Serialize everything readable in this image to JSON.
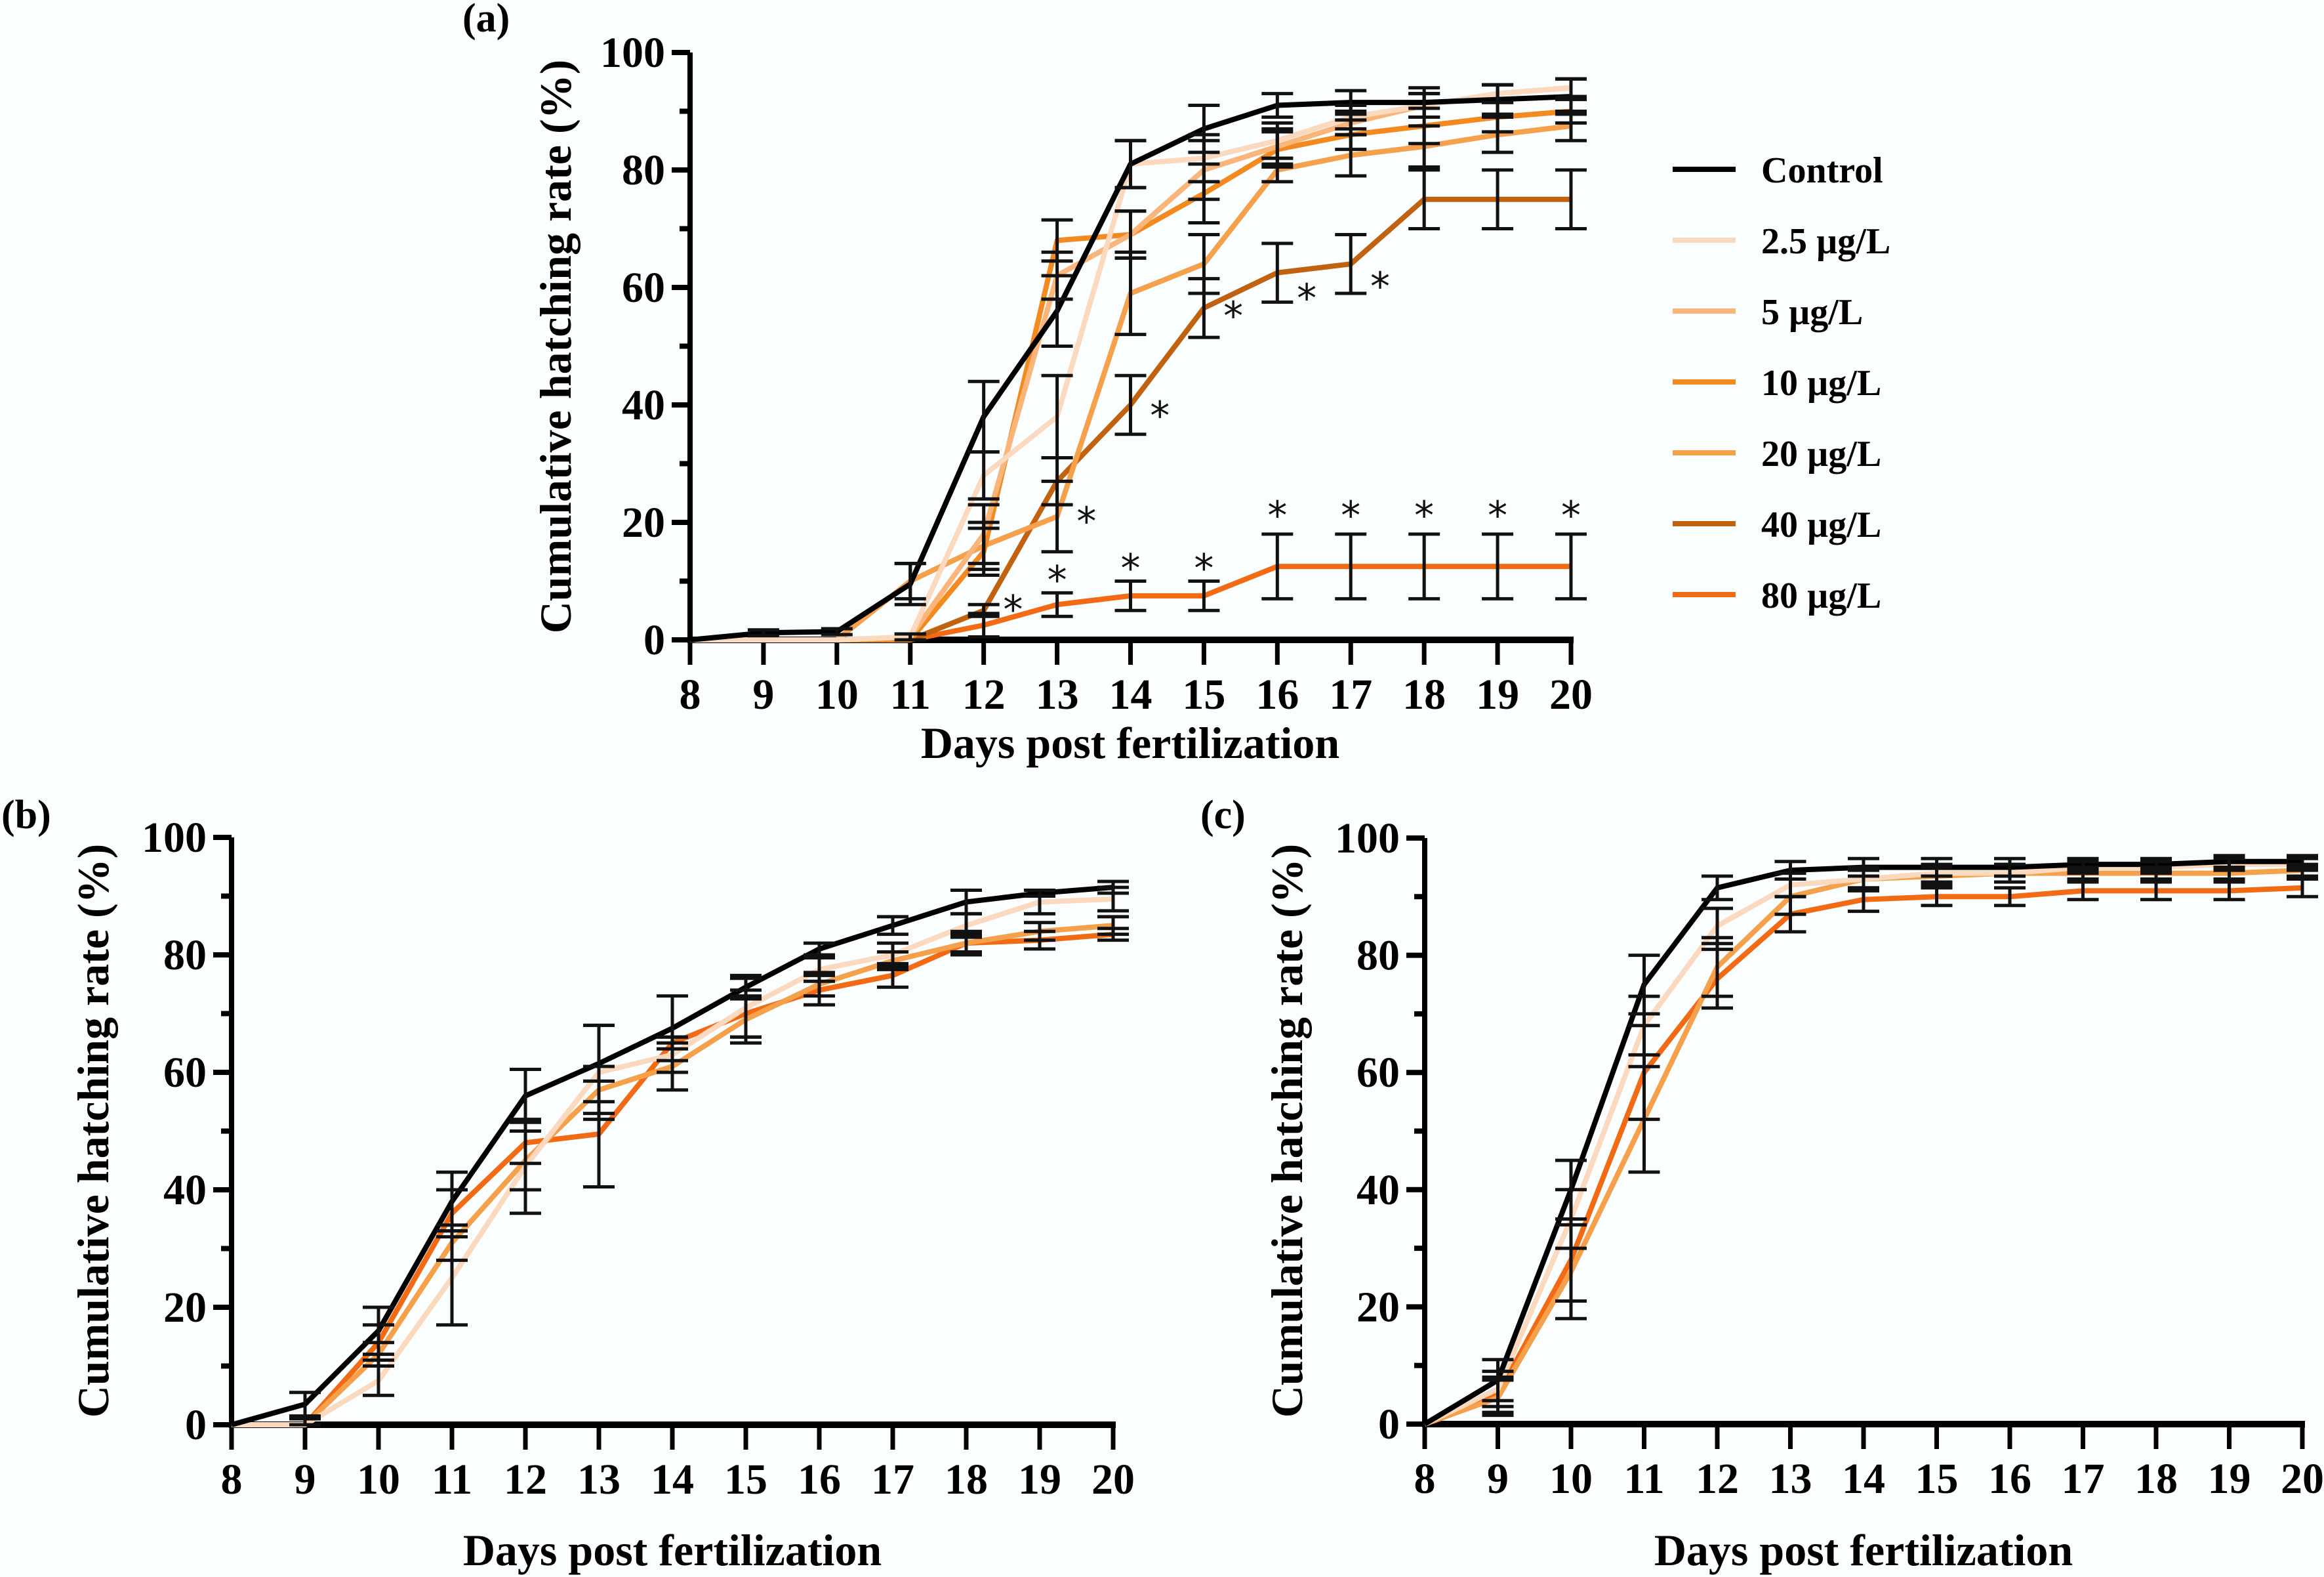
{
  "chart_data": [
    {
      "type": "line",
      "panel_label": "(a)",
      "xlabel": "Days post fertilization",
      "ylabel": "Cumulative hatching rate (%)",
      "xlim": [
        8,
        20
      ],
      "ylim": [
        0,
        100
      ],
      "x": [
        8,
        9,
        10,
        11,
        12,
        13,
        14,
        15,
        16,
        17,
        18,
        19,
        20
      ],
      "x_ticks": [
        "8",
        "9",
        "10",
        "11",
        "12",
        "13",
        "14",
        "15",
        "16",
        "17",
        "18",
        "19",
        "20"
      ],
      "y_ticks": [
        "0",
        "20",
        "40",
        "60",
        "80",
        "100"
      ],
      "grid": false,
      "legend_position": "right",
      "series": [
        {
          "name": "Control",
          "color": "#000000",
          "values": [
            0,
            1.2,
            1.4,
            9.5,
            38,
            56,
            81,
            87,
            91,
            91.5,
            91.5,
            92,
            92.5
          ],
          "err": [
            0,
            0.5,
            0.5,
            3.5,
            6,
            6,
            4,
            4,
            2,
            2,
            2.5,
            2.5,
            3
          ]
        },
        {
          "name": "2.5 µg/L",
          "color": "#fbd9bf",
          "values": [
            0,
            0,
            0,
            0.5,
            28,
            38,
            81,
            82,
            85,
            89,
            91,
            93,
            94
          ],
          "err": [
            0,
            0,
            0,
            0.5,
            4,
            7,
            4,
            4,
            3,
            2,
            2,
            1.5,
            1.5
          ]
        },
        {
          "name": "5 µg/L",
          "color": "#f9b57a",
          "values": [
            0,
            0,
            0,
            0.5,
            18,
            62,
            69,
            80,
            84,
            88,
            91,
            93,
            94
          ],
          "err": [
            0,
            0,
            0,
            0.5,
            5,
            4,
            4,
            5,
            3,
            2,
            2,
            1.5,
            1.5
          ]
        },
        {
          "name": "10 µg/L",
          "color": "#f38a1f",
          "values": [
            0,
            0,
            0,
            0,
            15,
            68,
            69,
            76,
            83.5,
            86,
            87.5,
            89,
            90
          ],
          "err": [
            0,
            0,
            0,
            0,
            4,
            3.5,
            4,
            5,
            3,
            2.5,
            3,
            2.5,
            2
          ]
        },
        {
          "name": "20 µg/L",
          "color": "#f5a04a",
          "values": [
            0,
            0,
            0,
            10,
            16,
            21,
            59,
            64,
            80,
            82.5,
            84,
            86,
            87.5
          ],
          "err": [
            0,
            0,
            0,
            3,
            4,
            6,
            7,
            5,
            2,
            3.5,
            3.5,
            3,
            2.5
          ]
        },
        {
          "name": "40 µg/L",
          "color": "#c0620f",
          "values": [
            0,
            0,
            0,
            0,
            5,
            27,
            40,
            56.5,
            62.5,
            64,
            75,
            75,
            75
          ],
          "err": [
            0,
            0,
            0,
            0,
            1,
            4,
            5,
            5,
            5,
            5,
            5,
            5,
            5
          ]
        },
        {
          "name": "80 µg/L",
          "color": "#f26a14",
          "values": [
            0,
            0,
            0,
            0,
            2.5,
            6,
            7.5,
            7.5,
            12.5,
            12.5,
            12.5,
            12.5,
            12.5
          ],
          "err": [
            0,
            0,
            0,
            0,
            2,
            2,
            2.5,
            2.5,
            5.5,
            5.5,
            5.5,
            5.5,
            5.5
          ]
        }
      ],
      "annotations": [
        {
          "text": "*",
          "x": 12.4,
          "y": 6,
          "series": "40 µg/L"
        },
        {
          "text": "*",
          "x": 13.4,
          "y": 21,
          "series": "20 µg/L"
        },
        {
          "text": "*",
          "x": 13,
          "y": 11,
          "series": "80 µg/L"
        },
        {
          "text": "*",
          "x": 14.4,
          "y": 39,
          "series": "40 µg/L"
        },
        {
          "text": "*",
          "x": 14,
          "y": 13,
          "series": "80 µg/L"
        },
        {
          "text": "*",
          "x": 15.4,
          "y": 56,
          "series": "40 µg/L"
        },
        {
          "text": "*",
          "x": 15,
          "y": 13,
          "series": "80 µg/L"
        },
        {
          "text": "*",
          "x": 16.4,
          "y": 59,
          "series": "40 µg/L"
        },
        {
          "text": "*",
          "x": 16,
          "y": 22,
          "series": "80 µg/L"
        },
        {
          "text": "*",
          "x": 17.4,
          "y": 61,
          "series": "40 µg/L"
        },
        {
          "text": "*",
          "x": 17,
          "y": 22,
          "series": "80 µg/L"
        },
        {
          "text": "*",
          "x": 18,
          "y": 22,
          "series": "80 µg/L"
        },
        {
          "text": "*",
          "x": 19,
          "y": 22,
          "series": "80 µg/L"
        },
        {
          "text": "*",
          "x": 20,
          "y": 22,
          "series": "80 µg/L"
        }
      ]
    },
    {
      "type": "line",
      "panel_label": "(b)",
      "xlabel": "Days post fertilization",
      "ylabel": "Cumulative hatching rate (%)",
      "xlim": [
        8,
        20
      ],
      "ylim": [
        0,
        100
      ],
      "x": [
        8,
        9,
        10,
        11,
        12,
        13,
        14,
        15,
        16,
        17,
        18,
        19,
        20
      ],
      "x_ticks": [
        "8",
        "9",
        "10",
        "11",
        "12",
        "13",
        "14",
        "15",
        "16",
        "17",
        "18",
        "19",
        "20"
      ],
      "y_ticks": [
        "0",
        "20",
        "40",
        "60",
        "80",
        "100"
      ],
      "grid": false,
      "series": [
        {
          "name": "Control",
          "color": "#000000",
          "values": [
            0,
            3.5,
            16,
            38,
            56,
            61.5,
            67.5,
            74.5,
            81,
            85,
            89,
            90.5,
            91.5
          ],
          "err": [
            0,
            2,
            4,
            5,
            4.5,
            6.5,
            5.5,
            2,
            1,
            1.5,
            2,
            0.5,
            1
          ]
        },
        {
          "name": "2.5 µg/L",
          "color": "#fbd9bf",
          "values": [
            0,
            0,
            7.5,
            25,
            44,
            60,
            63,
            71,
            77.5,
            80,
            85,
            89,
            89.5
          ],
          "err": [
            0,
            1,
            2.5,
            8,
            8,
            8,
            3,
            5,
            2,
            2,
            2,
            2,
            2
          ]
        },
        {
          "name": "20 µg/L",
          "color": "#f5a04a",
          "values": [
            0,
            0,
            12,
            31,
            45,
            57,
            61,
            69,
            75,
            79,
            82,
            84,
            85
          ],
          "err": [
            0,
            1,
            2,
            3,
            5,
            4,
            4,
            4,
            2,
            1.5,
            2,
            1.5,
            1.5
          ]
        },
        {
          "name": "80 µg/L",
          "color": "#f26a14",
          "values": [
            0,
            0,
            14,
            36,
            48,
            49.5,
            65,
            70,
            74,
            76.5,
            82,
            82.5,
            83.5
          ],
          "err": [
            0,
            1,
            3,
            4,
            3.5,
            9,
            1,
            4,
            2.5,
            2,
            1.5,
            1.5,
            1
          ]
        }
      ]
    },
    {
      "type": "line",
      "panel_label": "(c)",
      "xlabel": "Days post fertilization",
      "ylabel": "Cumulative hatching rate (%)",
      "xlim": [
        8,
        20
      ],
      "ylim": [
        0,
        100
      ],
      "x": [
        8,
        9,
        10,
        11,
        12,
        13,
        14,
        15,
        16,
        17,
        18,
        19,
        20
      ],
      "x_ticks": [
        "8",
        "9",
        "10",
        "11",
        "12",
        "13",
        "14",
        "15",
        "16",
        "17",
        "18",
        "19",
        "20"
      ],
      "y_ticks": [
        "0",
        "20",
        "40",
        "60",
        "80",
        "100"
      ],
      "grid": false,
      "series": [
        {
          "name": "Control",
          "color": "#000000",
          "values": [
            0,
            7.5,
            40,
            75,
            91.5,
            94.5,
            95,
            95,
            95,
            95.5,
            95.5,
            96,
            96
          ],
          "err": [
            0,
            3.5,
            5,
            5,
            2,
            1.5,
            1.5,
            1.5,
            1.5,
            1,
            1,
            1,
            1
          ]
        },
        {
          "name": "2.5 µg/L",
          "color": "#fbd9bf",
          "values": [
            0,
            6,
            35,
            68,
            85,
            92,
            93,
            94,
            94,
            95,
            95,
            95.5,
            95.5
          ],
          "err": [
            0,
            3,
            5,
            5,
            3,
            2,
            1.5,
            1.5,
            1.5,
            1,
            1,
            1,
            1
          ]
        },
        {
          "name": "20 µg/L",
          "color": "#f5a04a",
          "values": [
            0,
            4.5,
            26,
            52,
            78,
            90,
            93,
            93.5,
            94,
            94,
            94,
            94,
            94.5
          ],
          "err": [
            0,
            3,
            8,
            9,
            5,
            3,
            2,
            1.5,
            1.5,
            1,
            1,
            1,
            1
          ]
        },
        {
          "name": "80 µg/L",
          "color": "#f26a14",
          "values": [
            0,
            5,
            28,
            60,
            76,
            87,
            89.5,
            90,
            90,
            91,
            91,
            91,
            91.5
          ],
          "err": [
            0,
            3,
            7,
            8,
            5,
            3,
            2,
            1.5,
            1.5,
            1.5,
            1.5,
            1.5,
            1.5
          ]
        }
      ]
    }
  ],
  "legend": [
    {
      "label": "Control",
      "color": "#000000"
    },
    {
      "label": "2.5 µg/L",
      "color": "#fbd9bf"
    },
    {
      "label": "5 µg/L",
      "color": "#f9b57a"
    },
    {
      "label": "10 µg/L",
      "color": "#f38a1f"
    },
    {
      "label": "20 µg/L",
      "color": "#f5a04a"
    },
    {
      "label": "40 µg/L",
      "color": "#c0620f"
    },
    {
      "label": "80 µg/L",
      "color": "#f26a14"
    }
  ]
}
